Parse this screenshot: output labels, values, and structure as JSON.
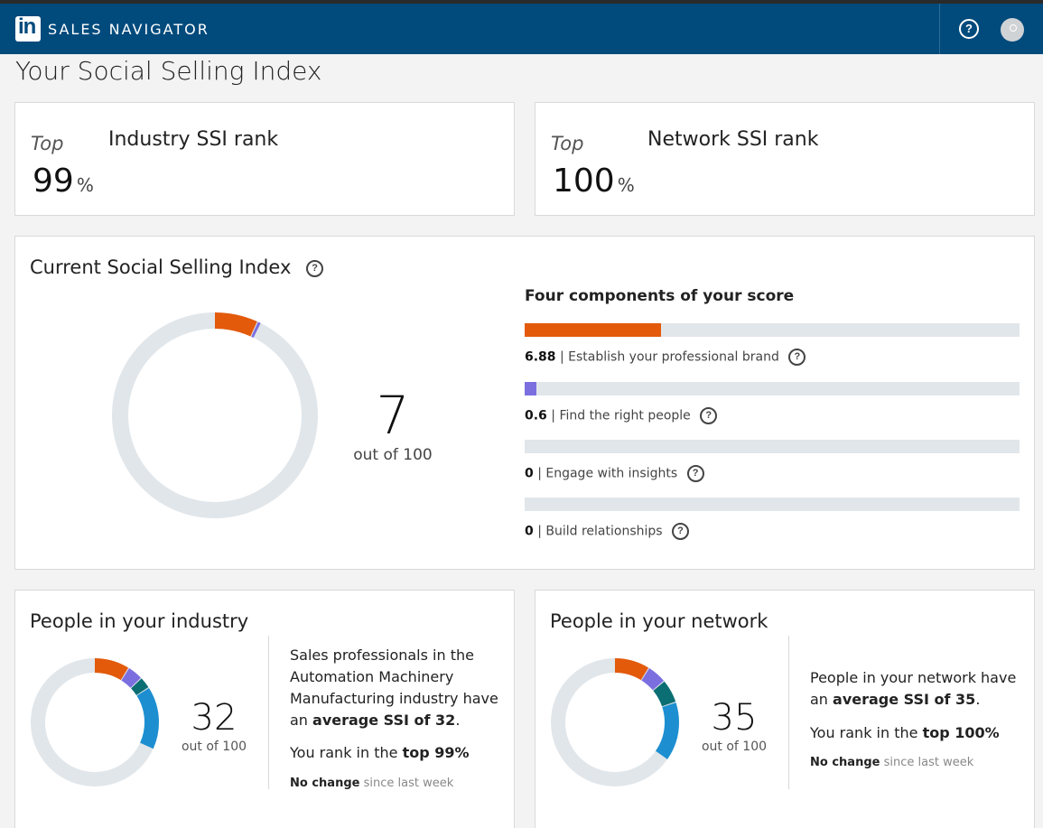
{
  "app": {
    "brand_text": "SALES NAVIGATOR",
    "logo_text": "in"
  },
  "header": {
    "help_icon": "question-circle-icon",
    "avatar_icon": "user-avatar-icon"
  },
  "page": {
    "title": "Your Social Selling Index"
  },
  "industry_rank": {
    "prefix": "Top",
    "value": "99",
    "unit": "%",
    "label": "Industry SSI rank"
  },
  "network_rank": {
    "prefix": "Top",
    "value": "100",
    "unit": "%",
    "label": "Network SSI rank"
  },
  "current_ssi": {
    "title": "Current Social Selling Index",
    "score": "7",
    "score_sub": "out of 100",
    "components_title": "Four components of your score",
    "components": [
      {
        "value": "6.88",
        "label": "Establish your professional brand",
        "fraction": 0.2752,
        "color": "#e35a0b"
      },
      {
        "value": "0.6",
        "label": "Find the right people",
        "fraction": 0.024,
        "color": "#7b6fe0"
      },
      {
        "value": "0",
        "label": "Engage with insights",
        "fraction": 0,
        "color": "#0b6e73"
      },
      {
        "value": "0",
        "label": "Build relationships",
        "fraction": 0,
        "color": "#1d8fd1"
      }
    ],
    "donut": {
      "max": 100,
      "segments": [
        6.88,
        0.6,
        0,
        0
      ]
    }
  },
  "industry": {
    "title": "People in your industry",
    "score": "32",
    "score_sub": "out of 100",
    "donut": {
      "max": 100,
      "segments": [
        9,
        4,
        3,
        16
      ]
    },
    "desc_prefix": "Sales professionals in the Automation Machinery Manufacturing industry have an ",
    "desc_bold": "average SSI of 32",
    "desc_suffix": ".",
    "rank_prefix": "You rank in the ",
    "rank_bold": "top 99%",
    "change_bold": "No change",
    "change_rest": " since last week"
  },
  "network": {
    "title": "People in your network",
    "score": "35",
    "score_sub": "out of 100",
    "donut": {
      "max": 100,
      "segments": [
        9,
        5,
        6,
        15
      ]
    },
    "desc_prefix": "People in your network have an ",
    "desc_bold": "average SSI of 35",
    "desc_suffix": ".",
    "rank_prefix": "You rank in the ",
    "rank_bold": "top 100%",
    "change_bold": "No change",
    "change_rest": " since last week"
  },
  "colors": {
    "navbar": "#004a7c",
    "track": "#e1e6ea",
    "brand": "#e35a0b",
    "people": "#7b6fe0",
    "insights": "#0b6e73",
    "relationships": "#1d8fd1"
  }
}
